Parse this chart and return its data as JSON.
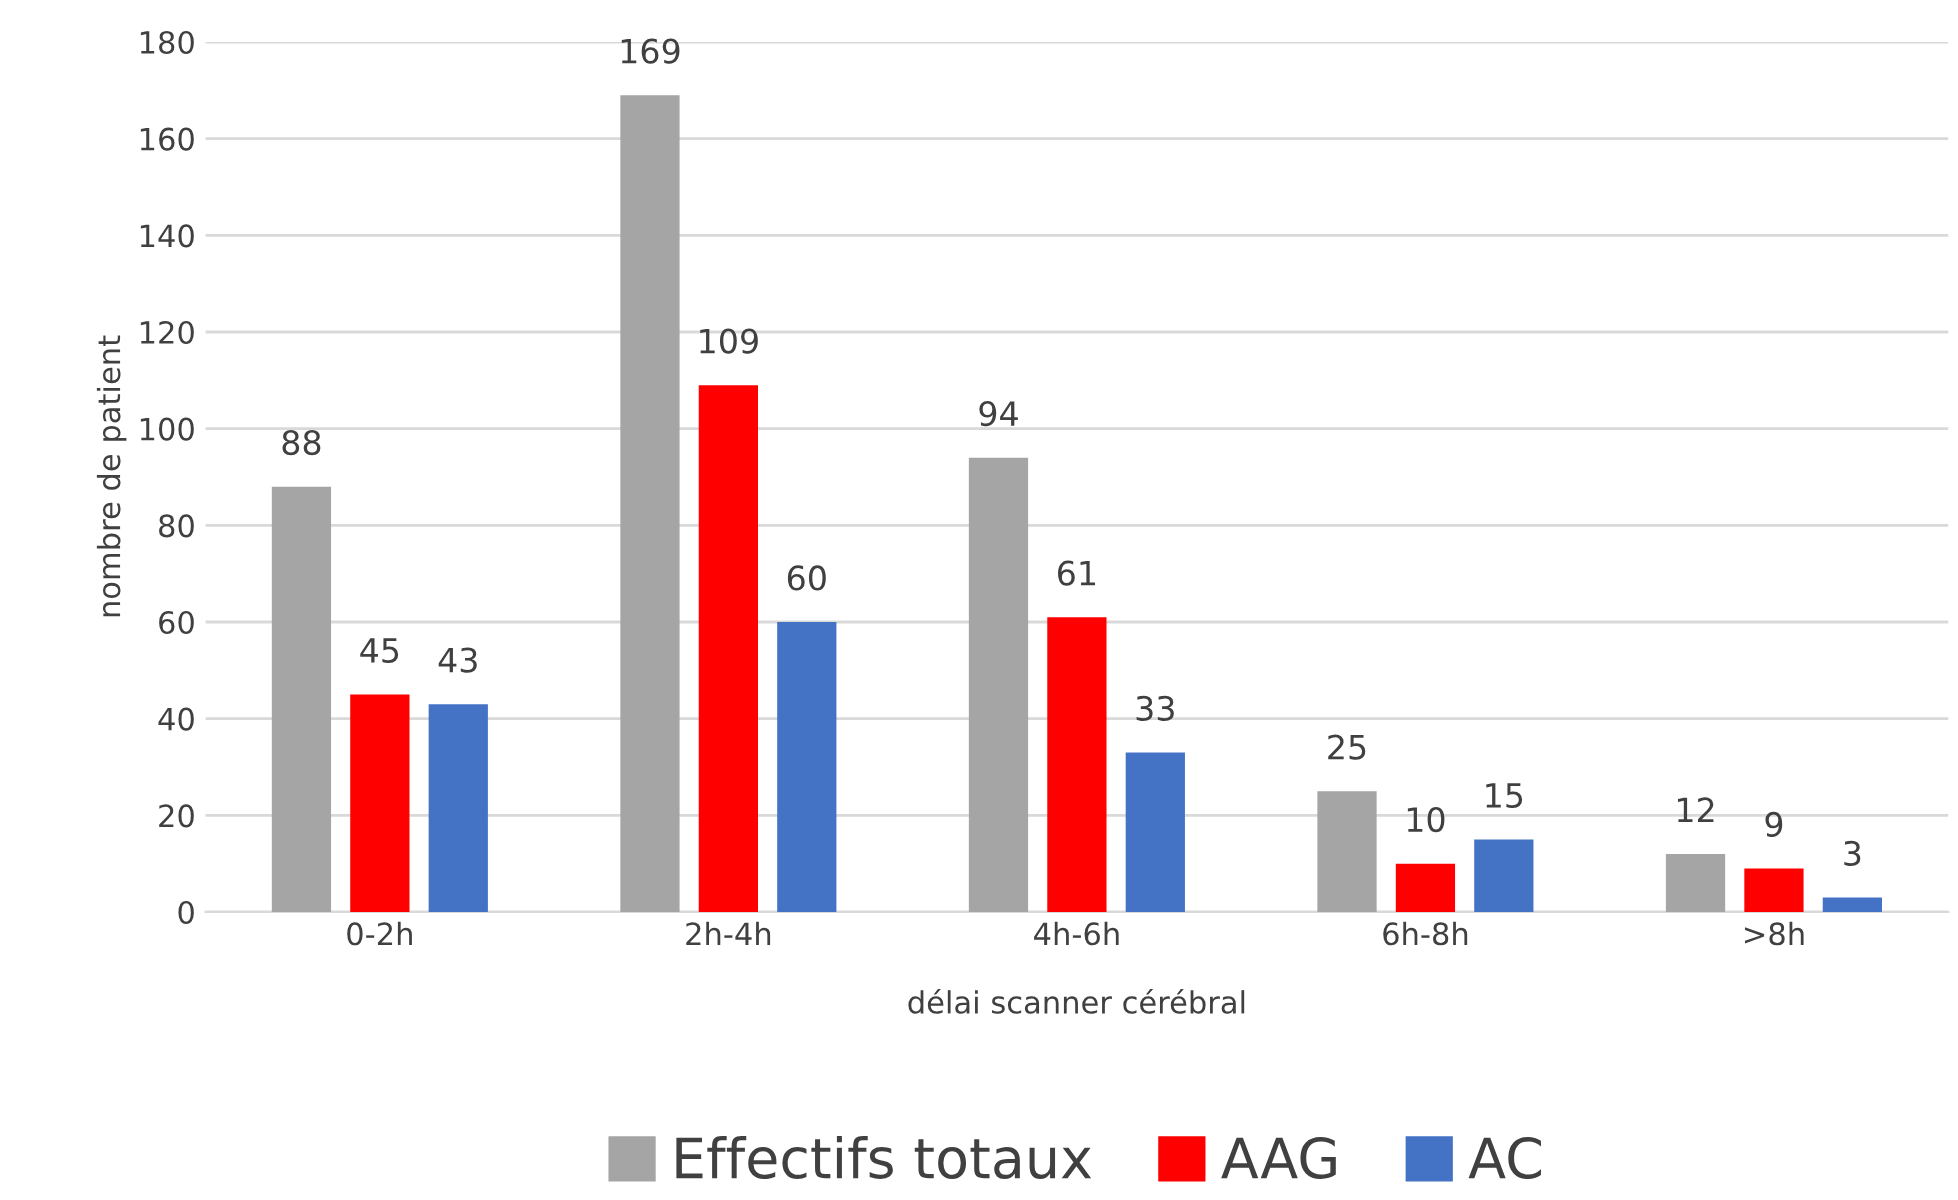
{
  "chart_data": {
    "type": "bar",
    "xlabel": "délai scanner cérébral",
    "ylabel": "nombre de patient",
    "categories": [
      "0-2h",
      "2h-4h",
      "4h-6h",
      "6h-8h",
      ">8h"
    ],
    "series": [
      {
        "name": "Effectifs totaux",
        "color": "#a5a5a5",
        "values": [
          88,
          169,
          94,
          25,
          12
        ]
      },
      {
        "name": "AAG",
        "color": "#ff0000",
        "values": [
          45,
          109,
          61,
          10,
          9
        ]
      },
      {
        "name": "AC",
        "color": "#4472c4",
        "values": [
          43,
          60,
          33,
          15,
          3
        ]
      }
    ],
    "ylim": [
      0,
      180
    ],
    "yticks": [
      0,
      20,
      40,
      60,
      80,
      100,
      120,
      140,
      160,
      180
    ],
    "grid": "y",
    "legend": "bottom",
    "data_labels": true
  }
}
